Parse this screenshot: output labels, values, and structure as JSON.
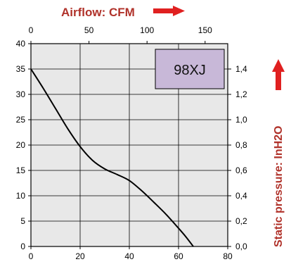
{
  "chart_data": {
    "type": "line",
    "model_label": "98XJ",
    "colors": {
      "plot_bg": "#e8e8e8",
      "grid": "#000000",
      "curve": "#000000",
      "title": "#b0322a",
      "arrow": "#e02020",
      "model_box": "#c8b8d8"
    },
    "grid": true,
    "top_axis": {
      "title": "Airflow: CFM",
      "range": [
        0,
        169.5
      ],
      "ticks": [
        0,
        50,
        100,
        150
      ],
      "tick_labels": [
        "0",
        "50",
        "100",
        "150"
      ]
    },
    "bottom_axis": {
      "title": "",
      "range": [
        0,
        80
      ],
      "ticks": [
        0,
        20,
        40,
        60,
        80
      ],
      "tick_labels": [
        "0",
        "20",
        "40",
        "60",
        "80"
      ]
    },
    "left_axis": {
      "title": "",
      "range": [
        0,
        40
      ],
      "ticks": [
        0,
        5,
        10,
        15,
        20,
        25,
        30,
        35,
        40
      ],
      "tick_labels": [
        "0",
        "5",
        "10",
        "15",
        "20",
        "25",
        "30",
        "35",
        "40"
      ]
    },
    "right_axis": {
      "title": "Static pressure: InH2O",
      "range": [
        0,
        1.6
      ],
      "ticks": [
        0,
        0.2,
        0.4,
        0.6,
        0.8,
        1.0,
        1.2,
        1.4
      ],
      "tick_labels": [
        "0,0",
        "0,2",
        "0,4",
        "0,6",
        "0,8",
        "1,0",
        "1,2",
        "1,4"
      ]
    },
    "series": [
      {
        "x": [
          0,
          5,
          10,
          15,
          20,
          25,
          30,
          35,
          40,
          45,
          50,
          55,
          60,
          63,
          66
        ],
        "y": [
          35,
          31.2,
          27.2,
          23.2,
          19.7,
          17.0,
          15.3,
          14.2,
          13.0,
          11.0,
          8.7,
          6.3,
          3.6,
          1.9,
          0
        ]
      }
    ]
  }
}
